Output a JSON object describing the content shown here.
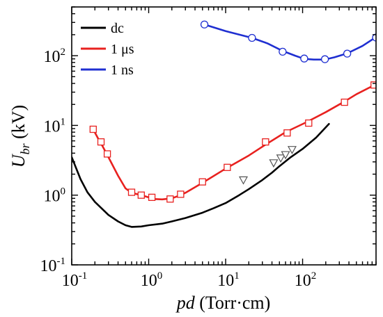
{
  "chart_data": {
    "type": "line",
    "xscale": "log",
    "yscale": "log",
    "xlim": [
      0.1,
      900
    ],
    "ylim": [
      0.1,
      500
    ],
    "x_tick_labels": [
      {
        "base": "10",
        "exp": "-1",
        "value": 0.1
      },
      {
        "base": "10",
        "exp": "0",
        "value": 1
      },
      {
        "base": "10",
        "exp": "1",
        "value": 10
      },
      {
        "base": "10",
        "exp": "2",
        "value": 100
      }
    ],
    "y_tick_labels": [
      {
        "base": "10",
        "exp": "-1",
        "value": 0.1
      },
      {
        "base": "10",
        "exp": "0",
        "value": 1
      },
      {
        "base": "10",
        "exp": "1",
        "value": 10
      },
      {
        "base": "10",
        "exp": "2",
        "value": 100
      }
    ],
    "xlabel": {
      "italic": "pd",
      "rest": " (Torr·cm)"
    },
    "ylabel": {
      "italic": "U",
      "sub": "br",
      "rest": " (kV)"
    },
    "legend_position": "top-left",
    "grid": false,
    "series": [
      {
        "name": "dc",
        "color": "#000000",
        "marker": "triangle-down",
        "line": [
          [
            0.1,
            3.5
          ],
          [
            0.13,
            1.7
          ],
          [
            0.16,
            1.1
          ],
          [
            0.2,
            0.8
          ],
          [
            0.3,
            0.52
          ],
          [
            0.4,
            0.42
          ],
          [
            0.5,
            0.37
          ],
          [
            0.6,
            0.35
          ],
          [
            0.8,
            0.355
          ],
          [
            1.0,
            0.37
          ],
          [
            1.5,
            0.39
          ],
          [
            2,
            0.42
          ],
          [
            3,
            0.47
          ],
          [
            5,
            0.56
          ],
          [
            7,
            0.65
          ],
          [
            10,
            0.77
          ],
          [
            15,
            1.0
          ],
          [
            20,
            1.22
          ],
          [
            30,
            1.65
          ],
          [
            40,
            2.1
          ],
          [
            50,
            2.6
          ],
          [
            70,
            3.5
          ],
          [
            100,
            4.6
          ],
          [
            150,
            6.7
          ],
          [
            220,
            10.5
          ]
        ],
        "markers": [
          [
            17,
            1.65
          ],
          [
            42,
            2.9
          ],
          [
            52,
            3.4
          ],
          [
            60,
            3.8
          ],
          [
            73,
            4.5
          ]
        ]
      },
      {
        "name": "1 μs",
        "color": "#e8211f",
        "marker": "square",
        "line": [
          [
            0.19,
            8.8
          ],
          [
            0.22,
            6.5
          ],
          [
            0.25,
            5.1
          ],
          [
            0.3,
            3.5
          ],
          [
            0.4,
            1.9
          ],
          [
            0.5,
            1.25
          ],
          [
            0.6,
            1.08
          ],
          [
            0.8,
            1.0
          ],
          [
            1.0,
            0.93
          ],
          [
            1.2,
            0.88
          ],
          [
            1.5,
            0.87
          ],
          [
            2,
            0.9
          ],
          [
            2.6,
            1.0
          ],
          [
            3,
            1.08
          ],
          [
            5,
            1.5
          ],
          [
            10,
            2.4
          ],
          [
            20,
            3.7
          ],
          [
            33,
            5.3
          ],
          [
            60,
            8.0
          ],
          [
            110,
            11.0
          ],
          [
            200,
            15.5
          ],
          [
            350,
            22
          ],
          [
            500,
            28
          ],
          [
            900,
            39
          ]
        ],
        "markers": [
          [
            0.19,
            8.8
          ],
          [
            0.24,
            5.8
          ],
          [
            0.29,
            3.9
          ],
          [
            0.6,
            1.1
          ],
          [
            0.8,
            1.0
          ],
          [
            1.1,
            0.93
          ],
          [
            1.9,
            0.88
          ],
          [
            2.6,
            1.03
          ],
          [
            5,
            1.55
          ],
          [
            10.5,
            2.5
          ],
          [
            33,
            5.8
          ],
          [
            63,
            7.8
          ],
          [
            120,
            10.8
          ],
          [
            350,
            21.5
          ],
          [
            850,
            38
          ]
        ]
      },
      {
        "name": "1 ns",
        "color": "#1f2fd1",
        "marker": "circle",
        "line": [
          [
            5.3,
            280
          ],
          [
            10,
            225
          ],
          [
            22,
            180
          ],
          [
            35,
            150
          ],
          [
            55,
            117
          ],
          [
            80,
            100
          ],
          [
            105,
            90
          ],
          [
            140,
            88
          ],
          [
            195,
            88
          ],
          [
            260,
            95
          ],
          [
            380,
            108
          ],
          [
            600,
            138
          ],
          [
            900,
            185
          ]
        ],
        "markers": [
          [
            5.3,
            280
          ],
          [
            22,
            180
          ],
          [
            55,
            114
          ],
          [
            105,
            91
          ],
          [
            195,
            89
          ],
          [
            380,
            107
          ],
          [
            900,
            182
          ]
        ]
      }
    ]
  }
}
